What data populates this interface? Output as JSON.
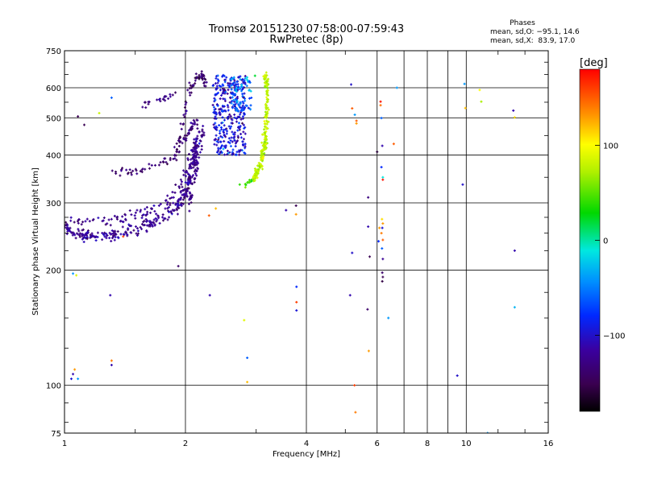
{
  "chart_data": {
    "type": "scatter",
    "title": "Tromsø 20151230 07:58:00-07:59:43",
    "subtitle": "RwPretec (8p)",
    "xlabel": "Frequency [MHz]",
    "ylabel": "Stationary phase Virtual Height [km]",
    "x_scale": "log",
    "y_scale": "log",
    "xlim": [
      1,
      16
    ],
    "ylim": [
      75,
      750
    ],
    "x_ticks": [
      1,
      2,
      4,
      6,
      8,
      10,
      16
    ],
    "x_gridlines": [
      2,
      4,
      6,
      7,
      8,
      9,
      10
    ],
    "y_ticks": [
      75,
      100,
      200,
      300,
      400,
      500,
      600,
      750
    ],
    "y_gridlines": [
      100,
      200,
      300,
      400,
      500,
      600
    ],
    "grid": true,
    "stats": {
      "title": "Phases",
      "line1": "mean, sd,O: −95.1, 14.6",
      "line2": "mean, sd,X:  83.9, 17.0"
    },
    "colorbar": {
      "label": "[deg]",
      "range": [
        -180,
        180
      ],
      "ticks": [
        {
          "value": 100,
          "label": "100"
        },
        {
          "value": 0,
          "label": "0"
        },
        {
          "value": -100,
          "label": "−100"
        }
      ],
      "colormap": "rainbow-black"
    },
    "traces": [
      {
        "kind": "curve",
        "x": [
          1.0,
          1.1,
          1.2,
          1.4,
          1.6,
          1.8,
          1.95,
          2.05,
          2.1,
          2.15
        ],
        "y": [
          258,
          248,
          245,
          250,
          262,
          278,
          300,
          340,
          390,
          450
        ],
        "n": 330,
        "spread": [
          0.022,
          0.035
        ],
        "phase": [
          -120,
          12
        ]
      },
      {
        "kind": "curve",
        "x": [
          1.0,
          1.15,
          1.35,
          1.6,
          1.85,
          2.05,
          2.12
        ],
        "y": [
          268,
          268,
          270,
          285,
          310,
          370,
          430
        ],
        "n": 110,
        "spread": [
          0.02,
          0.03
        ],
        "phase": [
          -125,
          10
        ]
      },
      {
        "kind": "curve",
        "x": [
          1.3,
          1.5,
          1.7,
          1.85,
          1.95,
          2.05,
          2.15
        ],
        "y": [
          360,
          362,
          375,
          395,
          430,
          470,
          500
        ],
        "n": 80,
        "spread": [
          0.02,
          0.03
        ],
        "phase": [
          -135,
          10
        ]
      },
      {
        "kind": "curve",
        "x": [
          1.55,
          1.65,
          1.78,
          1.9
        ],
        "y": [
          535,
          550,
          565,
          585
        ],
        "n": 22,
        "spread": [
          0.01,
          0.02
        ],
        "phase": [
          -125,
          8
        ]
      },
      {
        "kind": "curve",
        "x": [
          1.9,
          1.96,
          2.02,
          2.08,
          2.14,
          2.2,
          2.24
        ],
        "y": [
          390,
          470,
          560,
          610,
          635,
          650,
          620
        ],
        "n": 70,
        "spread": [
          0.012,
          0.03
        ],
        "phase": [
          -140,
          12
        ]
      },
      {
        "kind": "curve",
        "x": [
          2.05,
          2.1,
          2.15,
          2.2,
          2.22
        ],
        "y": [
          300,
          340,
          390,
          440,
          470
        ],
        "n": 45,
        "spread": [
          0.008,
          0.03
        ],
        "phase": [
          -125,
          8
        ]
      },
      {
        "kind": "cloud",
        "x": [
          2.34,
          2.82
        ],
        "y": [
          400,
          650
        ],
        "n": 320,
        "phase": [
          -95,
          18
        ]
      },
      {
        "kind": "cloud",
        "x": [
          2.6,
          2.92
        ],
        "y": [
          520,
          640
        ],
        "n": 70,
        "phase": [
          -60,
          20
        ]
      },
      {
        "kind": "curve",
        "x": [
          2.95,
          3.02,
          3.1,
          3.15,
          3.18,
          3.2,
          3.19,
          3.16
        ],
        "y": [
          345,
          360,
          390,
          430,
          480,
          540,
          600,
          650
        ],
        "n": 210,
        "spread": [
          0.014,
          0.025
        ],
        "phase": [
          78,
          10
        ]
      },
      {
        "kind": "curve",
        "x": [
          2.75,
          2.85,
          2.95
        ],
        "y": [
          328,
          338,
          346
        ],
        "n": 12,
        "spread": [
          0.01,
          0.015
        ],
        "phase": [
          40,
          10
        ]
      }
    ],
    "scatter_points": [
      {
        "x": 1.04,
        "y": 104,
        "phase": -95
      },
      {
        "x": 1.05,
        "y": 107,
        "phase": -110
      },
      {
        "x": 1.06,
        "y": 110,
        "phase": 130
      },
      {
        "x": 1.08,
        "y": 104,
        "phase": -40
      },
      {
        "x": 1.05,
        "y": 196,
        "phase": -40
      },
      {
        "x": 1.07,
        "y": 194,
        "phase": 90
      },
      {
        "x": 1.08,
        "y": 505,
        "phase": -150
      },
      {
        "x": 1.12,
        "y": 480,
        "phase": -150
      },
      {
        "x": 1.22,
        "y": 515,
        "phase": 80
      },
      {
        "x": 1.31,
        "y": 565,
        "phase": -60
      },
      {
        "x": 1.3,
        "y": 172,
        "phase": -110
      },
      {
        "x": 1.31,
        "y": 116,
        "phase": 140
      },
      {
        "x": 1.31,
        "y": 113,
        "phase": -110
      },
      {
        "x": 1.4,
        "y": 245,
        "phase": 160
      },
      {
        "x": 1.92,
        "y": 205,
        "phase": -140
      },
      {
        "x": 2.3,
        "y": 172,
        "phase": -110
      },
      {
        "x": 2.29,
        "y": 278,
        "phase": 150
      },
      {
        "x": 2.38,
        "y": 290,
        "phase": 120
      },
      {
        "x": 2.73,
        "y": 335,
        "phase": 40
      },
      {
        "x": 2.8,
        "y": 148,
        "phase": 90
      },
      {
        "x": 2.85,
        "y": 118,
        "phase": -60
      },
      {
        "x": 2.85,
        "y": 102,
        "phase": 120
      },
      {
        "x": 2.98,
        "y": 645,
        "phase": 20
      },
      {
        "x": 3.56,
        "y": 287,
        "phase": -110
      },
      {
        "x": 3.77,
        "y": 295,
        "phase": -150
      },
      {
        "x": 3.77,
        "y": 280,
        "phase": 130
      },
      {
        "x": 3.78,
        "y": 181,
        "phase": -80
      },
      {
        "x": 3.78,
        "y": 165,
        "phase": 160
      },
      {
        "x": 3.78,
        "y": 157,
        "phase": -95
      },
      {
        "x": 5.17,
        "y": 612,
        "phase": -100
      },
      {
        "x": 5.2,
        "y": 530,
        "phase": 150
      },
      {
        "x": 5.28,
        "y": 510,
        "phase": -40
      },
      {
        "x": 5.33,
        "y": 492,
        "phase": 150
      },
      {
        "x": 5.33,
        "y": 484,
        "phase": 130
      },
      {
        "x": 5.2,
        "y": 222,
        "phase": -100
      },
      {
        "x": 5.14,
        "y": 172,
        "phase": -110
      },
      {
        "x": 5.27,
        "y": 100,
        "phase": 160
      },
      {
        "x": 5.3,
        "y": 85,
        "phase": 140
      },
      {
        "x": 5.7,
        "y": 310,
        "phase": -130
      },
      {
        "x": 5.7,
        "y": 260,
        "phase": -110
      },
      {
        "x": 5.75,
        "y": 217,
        "phase": -150
      },
      {
        "x": 5.68,
        "y": 158,
        "phase": -140
      },
      {
        "x": 5.72,
        "y": 123,
        "phase": 130
      },
      {
        "x": 6.0,
        "y": 408,
        "phase": -160
      },
      {
        "x": 6.05,
        "y": 238,
        "phase": -80
      },
      {
        "x": 6.08,
        "y": 258,
        "phase": 130
      },
      {
        "x": 6.12,
        "y": 552,
        "phase": 175
      },
      {
        "x": 6.12,
        "y": 540,
        "phase": 145
      },
      {
        "x": 6.15,
        "y": 500,
        "phase": -60
      },
      {
        "x": 6.18,
        "y": 423,
        "phase": -110
      },
      {
        "x": 6.15,
        "y": 372,
        "phase": -80
      },
      {
        "x": 6.2,
        "y": 350,
        "phase": -10
      },
      {
        "x": 6.2,
        "y": 345,
        "phase": 175
      },
      {
        "x": 6.17,
        "y": 272,
        "phase": 110
      },
      {
        "x": 6.2,
        "y": 265,
        "phase": 130
      },
      {
        "x": 6.18,
        "y": 258,
        "phase": -95
      },
      {
        "x": 6.15,
        "y": 250,
        "phase": 140
      },
      {
        "x": 6.2,
        "y": 240,
        "phase": 150
      },
      {
        "x": 6.17,
        "y": 228,
        "phase": -60
      },
      {
        "x": 6.2,
        "y": 214,
        "phase": -120
      },
      {
        "x": 6.18,
        "y": 197,
        "phase": -140
      },
      {
        "x": 6.2,
        "y": 192,
        "phase": -150
      },
      {
        "x": 6.18,
        "y": 187,
        "phase": -155
      },
      {
        "x": 6.4,
        "y": 150,
        "phase": -40
      },
      {
        "x": 6.6,
        "y": 428,
        "phase": 150
      },
      {
        "x": 6.72,
        "y": 600,
        "phase": -40
      },
      {
        "x": 9.5,
        "y": 106,
        "phase": -100
      },
      {
        "x": 9.8,
        "y": 335,
        "phase": -100
      },
      {
        "x": 9.9,
        "y": 614,
        "phase": -40
      },
      {
        "x": 9.95,
        "y": 531,
        "phase": 120
      },
      {
        "x": 10.8,
        "y": 592,
        "phase": 100
      },
      {
        "x": 10.9,
        "y": 552,
        "phase": 70
      },
      {
        "x": 11.3,
        "y": 75,
        "phase": -40
      },
      {
        "x": 13.1,
        "y": 523,
        "phase": -110
      },
      {
        "x": 13.2,
        "y": 502,
        "phase": 110
      },
      {
        "x": 13.2,
        "y": 225,
        "phase": -110
      },
      {
        "x": 13.2,
        "y": 160,
        "phase": -30
      }
    ]
  }
}
